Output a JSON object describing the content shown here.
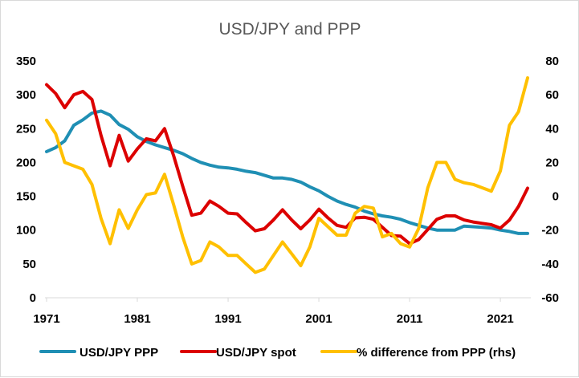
{
  "chart_data": {
    "type": "line",
    "title": "USD/JPY and PPP",
    "xlabel": "",
    "ylabel": "",
    "ylabel_right": "",
    "x_ticks": [
      "1971",
      "1981",
      "1991",
      "2001",
      "2011",
      "2021"
    ],
    "xlim": [
      1971,
      2024
    ],
    "ylim": [
      0,
      350
    ],
    "ylim_right": [
      -60,
      80
    ],
    "y_ticks": [
      "0",
      "50",
      "100",
      "150",
      "200",
      "250",
      "300",
      "350"
    ],
    "y_ticks_right": [
      "-60",
      "-40",
      "-20",
      "0",
      "20",
      "40",
      "60",
      "80"
    ],
    "grid": false,
    "legend_position": "bottom",
    "series": [
      {
        "name": "USD/JPY PPP",
        "axis": "left",
        "color": "#1f8fb4",
        "x": [
          1971,
          1972,
          1973,
          1974,
          1975,
          1976,
          1977,
          1978,
          1979,
          1980,
          1981,
          1982,
          1983,
          1984,
          1985,
          1986,
          1987,
          1988,
          1989,
          1990,
          1991,
          1992,
          1993,
          1994,
          1995,
          1996,
          1997,
          1998,
          1999,
          2000,
          2001,
          2002,
          2003,
          2004,
          2005,
          2006,
          2007,
          2008,
          2009,
          2010,
          2011,
          2012,
          2013,
          2014,
          2015,
          2016,
          2017,
          2018,
          2019,
          2020,
          2021,
          2022,
          2023,
          2024
        ],
        "values": [
          216,
          222,
          232,
          255,
          263,
          273,
          276,
          270,
          256,
          249,
          238,
          231,
          226,
          222,
          218,
          213,
          206,
          200,
          196,
          193,
          192,
          190,
          187,
          185,
          181,
          177,
          177,
          175,
          171,
          164,
          158,
          150,
          143,
          138,
          134,
          128,
          124,
          121,
          119,
          116,
          111,
          107,
          103,
          100,
          100,
          100,
          106,
          105,
          104,
          103,
          100,
          98,
          95,
          95
        ]
      },
      {
        "name": "USD/JPY spot",
        "axis": "left",
        "color": "#dc0000",
        "x": [
          1971,
          1972,
          1973,
          1974,
          1975,
          1976,
          1977,
          1978,
          1979,
          1980,
          1981,
          1982,
          1983,
          1984,
          1985,
          1986,
          1987,
          1988,
          1989,
          1990,
          1991,
          1992,
          1993,
          1994,
          1995,
          1996,
          1997,
          1998,
          1999,
          2000,
          2001,
          2002,
          2003,
          2004,
          2005,
          2006,
          2007,
          2008,
          2009,
          2010,
          2011,
          2012,
          2013,
          2014,
          2015,
          2016,
          2017,
          2018,
          2019,
          2020,
          2021,
          2022,
          2023,
          2024
        ],
        "values": [
          315,
          302,
          281,
          300,
          305,
          293,
          240,
          195,
          240,
          202,
          220,
          235,
          232,
          250,
          210,
          165,
          122,
          125,
          143,
          135,
          125,
          124,
          111,
          99,
          102,
          115,
          130,
          115,
          102,
          115,
          131,
          118,
          107,
          104,
          118,
          119,
          116,
          104,
          92,
          91,
          80,
          86,
          101,
          116,
          121,
          121,
          115,
          112,
          110,
          108,
          103,
          115,
          135,
          162
        ]
      },
      {
        "name": "% difference from PPP (rhs)",
        "axis": "right",
        "color": "#ffc000",
        "x": [
          1971,
          1972,
          1973,
          1974,
          1975,
          1976,
          1977,
          1978,
          1979,
          1980,
          1981,
          1982,
          1983,
          1984,
          1985,
          1986,
          1987,
          1988,
          1989,
          1990,
          1991,
          1992,
          1993,
          1994,
          1995,
          1996,
          1997,
          1998,
          1999,
          2000,
          2001,
          2002,
          2003,
          2004,
          2005,
          2006,
          2007,
          2008,
          2009,
          2010,
          2011,
          2012,
          2013,
          2014,
          2015,
          2016,
          2017,
          2018,
          2019,
          2020,
          2021,
          2022,
          2023,
          2024
        ],
        "values": [
          45,
          37,
          20,
          18,
          16,
          7,
          -13,
          -28,
          -8,
          -19,
          -8,
          1,
          2,
          13,
          -5,
          -24,
          -40,
          -38,
          -27,
          -30,
          -35,
          -35,
          -40,
          -45,
          -43,
          -35,
          -27,
          -34,
          -41,
          -30,
          -13,
          -18,
          -23,
          -23,
          -10,
          -6,
          -7,
          -24,
          -22,
          -28,
          -30,
          -19,
          5,
          20,
          20,
          10,
          8,
          7,
          5,
          3,
          15,
          42,
          50,
          70
        ]
      }
    ]
  }
}
